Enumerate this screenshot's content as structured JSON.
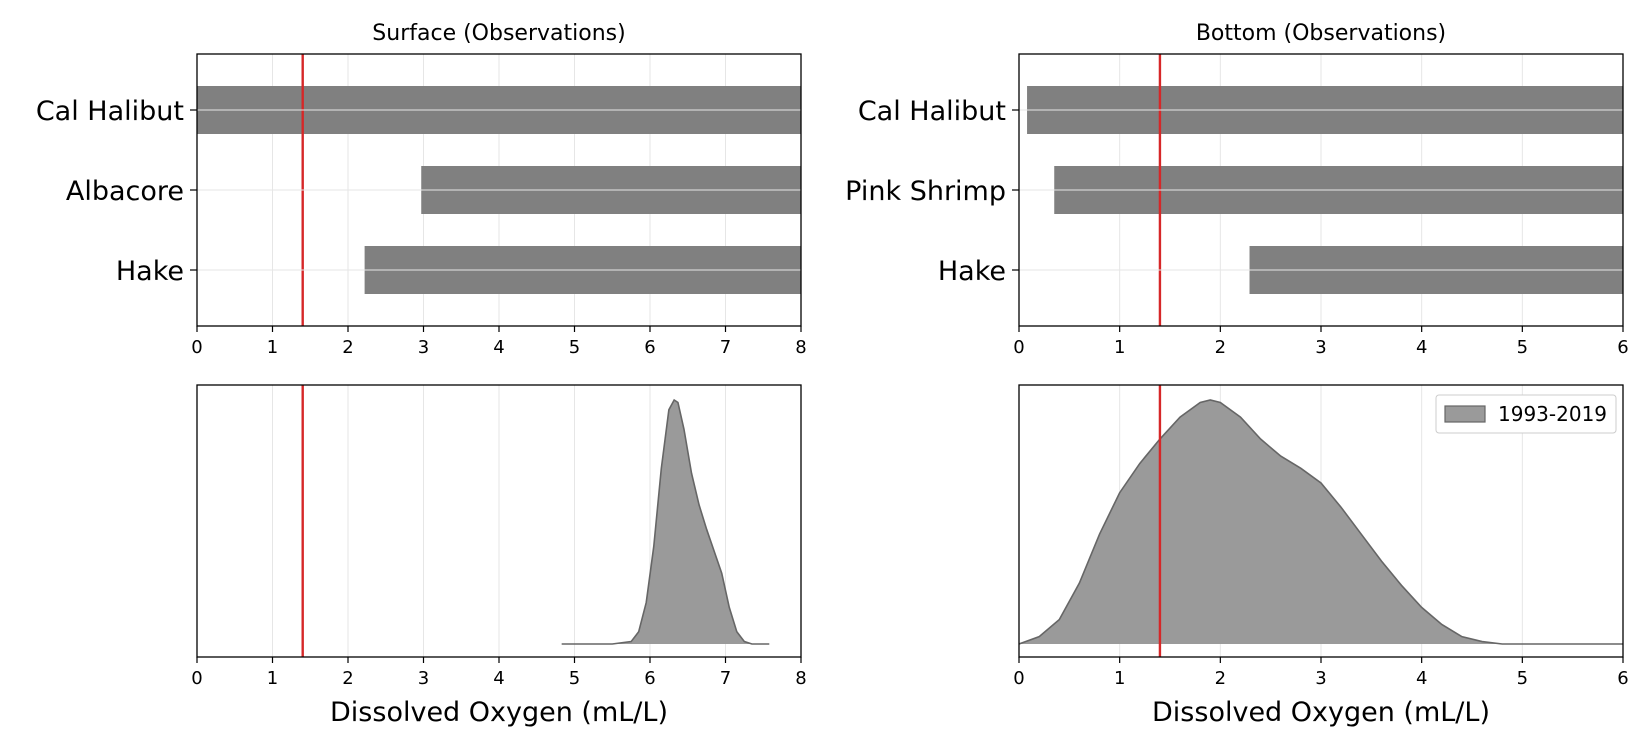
{
  "colors": {
    "bar": "#808080",
    "density_fill": "#9a9a9a",
    "density_edge": "#666666",
    "threshold": "#d62728",
    "grid": "#e6e6e6"
  },
  "threshold_value": 1.4,
  "chart_data": [
    {
      "id": "surface-obs",
      "type": "bar",
      "orientation": "horizontal",
      "title": "Surface (Observations)",
      "categories": [
        "Cal Halibut",
        "Albacore",
        "Hake"
      ],
      "ranges": [
        [
          0,
          8
        ],
        [
          2.97,
          8
        ],
        [
          2.22,
          8
        ]
      ],
      "xlim": [
        0,
        8
      ],
      "xticks": [
        0,
        1,
        2,
        3,
        4,
        5,
        6,
        7,
        8
      ],
      "grid": true,
      "threshold": 1.4
    },
    {
      "id": "bottom-obs",
      "type": "bar",
      "orientation": "horizontal",
      "title": "Bottom (Observations)",
      "categories": [
        "Cal Halibut",
        "Pink Shrimp",
        "Hake"
      ],
      "ranges": [
        [
          0.08,
          6
        ],
        [
          0.35,
          6
        ],
        [
          2.29,
          6
        ]
      ],
      "xlim": [
        0,
        6
      ],
      "xticks": [
        0,
        1,
        2,
        3,
        4,
        5,
        6
      ],
      "grid": true,
      "threshold": 1.4
    },
    {
      "id": "surface-density",
      "type": "area",
      "xlabel": "Dissolved Oxygen (mL/L)",
      "xlim": [
        0,
        8
      ],
      "xticks": [
        0,
        1,
        2,
        3,
        4,
        5,
        6,
        7,
        8
      ],
      "ylim": [
        0,
        1
      ],
      "grid": true,
      "threshold": 1.4,
      "x": [
        4.83,
        5.5,
        5.75,
        5.85,
        5.95,
        6.05,
        6.15,
        6.25,
        6.32,
        6.37,
        6.45,
        6.55,
        6.65,
        6.75,
        6.85,
        6.95,
        7.05,
        7.15,
        7.25,
        7.35,
        7.45,
        7.58
      ],
      "y": [
        0.0,
        0.0,
        0.01,
        0.05,
        0.17,
        0.4,
        0.72,
        0.96,
        1.0,
        0.99,
        0.88,
        0.7,
        0.57,
        0.47,
        0.38,
        0.29,
        0.15,
        0.05,
        0.01,
        0.0,
        0.0,
        0.0
      ]
    },
    {
      "id": "bottom-density",
      "type": "area",
      "xlabel": "Dissolved Oxygen (mL/L)",
      "xlim": [
        0,
        6
      ],
      "xticks": [
        0,
        1,
        2,
        3,
        4,
        5,
        6
      ],
      "ylim": [
        0,
        1
      ],
      "grid": true,
      "threshold": 1.4,
      "legend": {
        "label": "1993-2019",
        "placement": "top-right"
      },
      "x": [
        0,
        0.2,
        0.4,
        0.6,
        0.8,
        1.0,
        1.2,
        1.4,
        1.6,
        1.8,
        1.9,
        2.0,
        2.2,
        2.4,
        2.6,
        2.8,
        3.0,
        3.2,
        3.4,
        3.6,
        3.8,
        4.0,
        4.2,
        4.4,
        4.6,
        4.8,
        5.0,
        5.5,
        6.0
      ],
      "y": [
        0.0,
        0.03,
        0.1,
        0.25,
        0.45,
        0.62,
        0.74,
        0.84,
        0.93,
        0.99,
        1.0,
        0.99,
        0.93,
        0.84,
        0.77,
        0.72,
        0.66,
        0.56,
        0.45,
        0.34,
        0.24,
        0.15,
        0.08,
        0.03,
        0.01,
        0.0,
        0.0,
        0.0,
        0.0
      ]
    }
  ]
}
